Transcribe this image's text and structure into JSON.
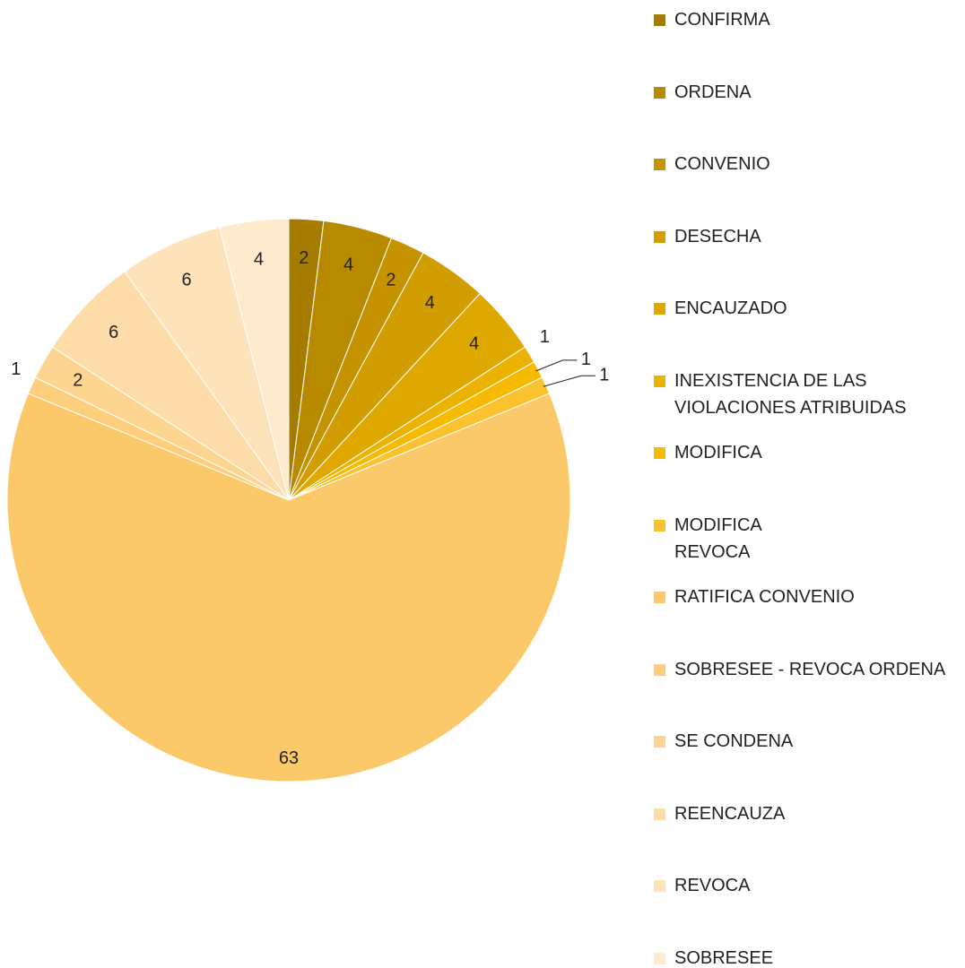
{
  "chart_data": {
    "type": "pie",
    "categories": [
      "CONFIRMA",
      "ORDENA",
      "CONVENIO",
      "DESECHA",
      "ENCAUZADO",
      "INEXISTENCIA DE LAS\nVIOLACIONES ATRIBUIDAS",
      "MODIFICA",
      "MODIFICA\nREVOCA",
      "RATIFICA CONVENIO",
      "SOBRESEE - REVOCA ORDENA",
      "SE CONDENA",
      "REENCAUZA",
      "REVOCA",
      "SOBRESEE"
    ],
    "values": [
      2,
      4,
      2,
      4,
      4,
      1,
      1,
      1,
      63,
      1,
      2,
      6,
      6,
      4
    ],
    "colors": [
      "#a67c00",
      "#b88a00",
      "#c59300",
      "#d19d00",
      "#dfa800",
      "#ecb200",
      "#f6bb00",
      "#f9c22e",
      "#fcc96a",
      "#fdcf7c",
      "#fdd591",
      "#fedcaa",
      "#fee2b9",
      "#feeacc"
    ],
    "legend": "right"
  }
}
